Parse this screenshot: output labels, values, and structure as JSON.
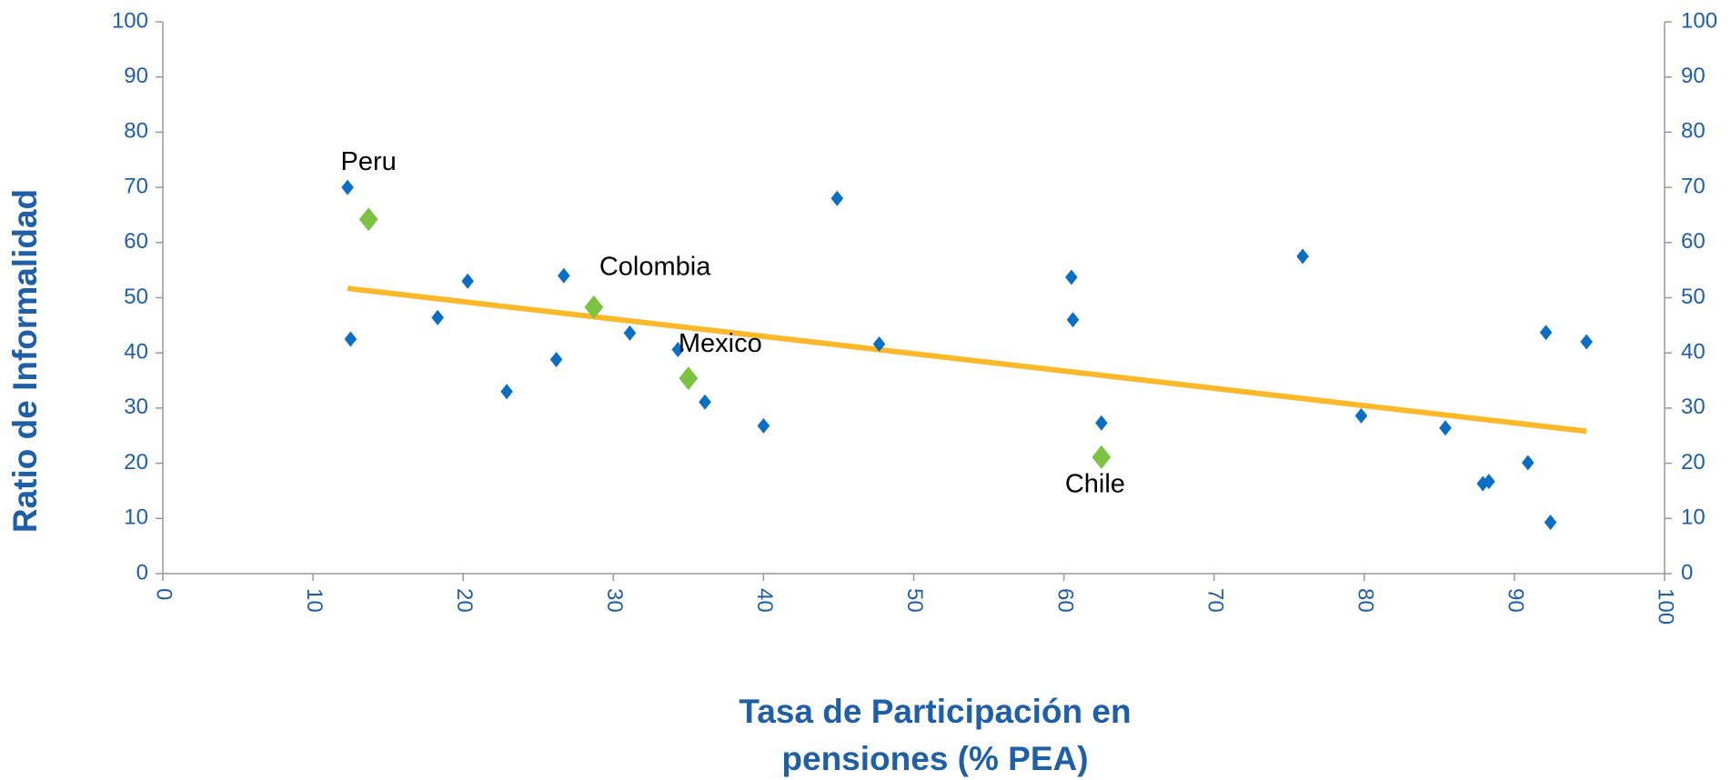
{
  "chart_data": {
    "type": "scatter",
    "x_label": [
      "Tasa de Participación en",
      "pensiones (% PEA)"
    ],
    "y_label": "Ratio de Informalidad",
    "xlim": [
      0,
      100
    ],
    "xticks": [
      0,
      10,
      20,
      30,
      40,
      50,
      60,
      70,
      80,
      90,
      100
    ],
    "ylim": [
      0,
      100
    ],
    "yticks": [
      0,
      10,
      20,
      30,
      40,
      50,
      60,
      70,
      80,
      90,
      100
    ],
    "y2lim": [
      0,
      100
    ],
    "y2ticks": [
      0,
      10,
      20,
      30,
      40,
      50,
      60,
      70,
      80,
      90,
      100
    ],
    "series": [
      {
        "color": "#0a6fc2",
        "x": [
          12.3,
          12.5,
          18.3,
          20.3,
          22.9,
          26.2,
          26.7,
          31.1,
          34.3,
          36.1,
          40,
          44.9,
          47.7,
          60.5,
          60.6,
          62.5,
          75.9,
          79.8,
          85.4,
          87.9,
          88.3,
          90.9,
          92.1,
          92.4,
          94.8
        ],
        "values": [
          70,
          42.5,
          46.4,
          53,
          33,
          38.8,
          54,
          43.6,
          40.6,
          31.1,
          26.8,
          68,
          41.6,
          53.7,
          46,
          27.3,
          57.5,
          28.6,
          26.4,
          16.3,
          16.7,
          20.1,
          43.7,
          9.3,
          42
        ]
      },
      {
        "color": "#7dc242",
        "x": [
          13.7,
          28.7,
          35,
          62.5
        ],
        "values": [
          64.2,
          48.3,
          35.4,
          21.1
        ],
        "labels": [
          "Peru",
          "Colombia",
          "Mexico",
          "Chile"
        ]
      }
    ],
    "trend": {
      "type": "line",
      "color": "#fbb829",
      "x": [
        12.3,
        94.8
      ],
      "values": [
        51.7,
        25.8
      ]
    }
  }
}
